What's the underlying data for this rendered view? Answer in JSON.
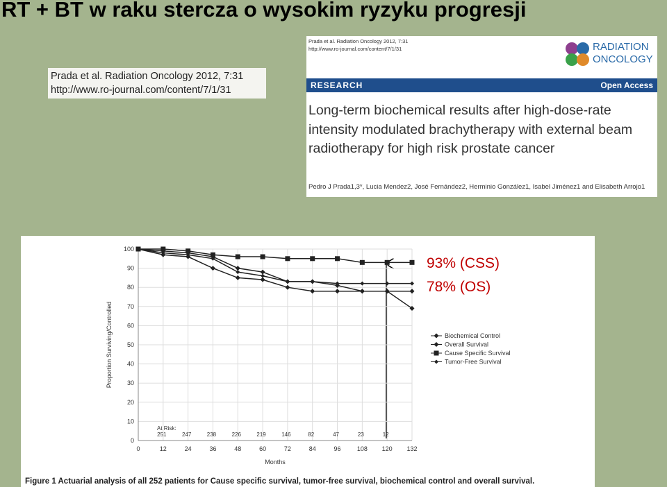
{
  "slide_title": "RT + BT w raku stercza o wysokim ryzyku progresji",
  "citation": {
    "journal": "Prada et al. Radiation Oncology 2012, 7:31",
    "url": "http://www.ro-journal.com/content/7/1/31"
  },
  "article": {
    "journal": "Prada et al. Radiation Oncology 2012, 7:31",
    "url": "http://www.ro-journal.com/content/7/1/31",
    "logo": [
      "RADIATION",
      "ONCOLOGY"
    ],
    "section": "RESEARCH",
    "access": "Open Access",
    "title": "Long-term biochemical results after high-dose-rate intensity modulated brachytherapy with external beam radiotherapy for high risk prostate cancer",
    "authors": "Pedro J Prada1,3*, Lucia Mendez2, José Fernández2, Herminio González1, Isabel Jiménez1 and Elisabeth Arrojo1"
  },
  "chart_data": {
    "type": "line",
    "x": [
      0,
      12,
      24,
      36,
      48,
      60,
      72,
      84,
      96,
      108,
      120,
      132
    ],
    "series": [
      {
        "name": "Biochemical Control",
        "color": "#222222",
        "marker": "diamond",
        "values": [
          100,
          99,
          98,
          96,
          90,
          88,
          83,
          83,
          81,
          78,
          78,
          69
        ]
      },
      {
        "name": "Overall Survival",
        "color": "#222222",
        "marker": "diamond",
        "values": [
          100,
          97,
          96,
          90,
          85,
          84,
          80,
          78,
          78,
          78,
          78,
          78
        ]
      },
      {
        "name": "Cause Specific Survival",
        "color": "#222222",
        "marker": "square",
        "values": [
          100,
          100,
          99,
          97,
          96,
          96,
          95,
          95,
          95,
          93,
          93,
          93
        ]
      },
      {
        "name": "Tumor-Free Survival",
        "color": "#222222",
        "marker": "star",
        "values": [
          100,
          98,
          97,
          95,
          88,
          86,
          83,
          83,
          82,
          82,
          82,
          82
        ]
      }
    ],
    "xlim": [
      0,
      132
    ],
    "xticks": [
      0,
      12,
      24,
      36,
      48,
      60,
      72,
      84,
      96,
      108,
      120,
      132
    ],
    "ylim": [
      0,
      100
    ],
    "yticks": [
      0,
      10,
      20,
      30,
      40,
      50,
      60,
      70,
      80,
      90,
      100
    ],
    "grid": true,
    "ylabel": "Proportion Surviving/Controlled",
    "xlabel": "Months",
    "at_risk_label": "At Risk:",
    "at_risk": [
      251,
      247,
      238,
      226,
      219,
      146,
      82,
      47,
      23,
      12
    ],
    "annotations": [
      "93% (CSS)",
      "78% (OS)"
    ],
    "caption": "Figure 1 Actuarial analysis of all 252 patients for Cause specific survival, tumor-free survival, biochemical control and overall survival."
  }
}
